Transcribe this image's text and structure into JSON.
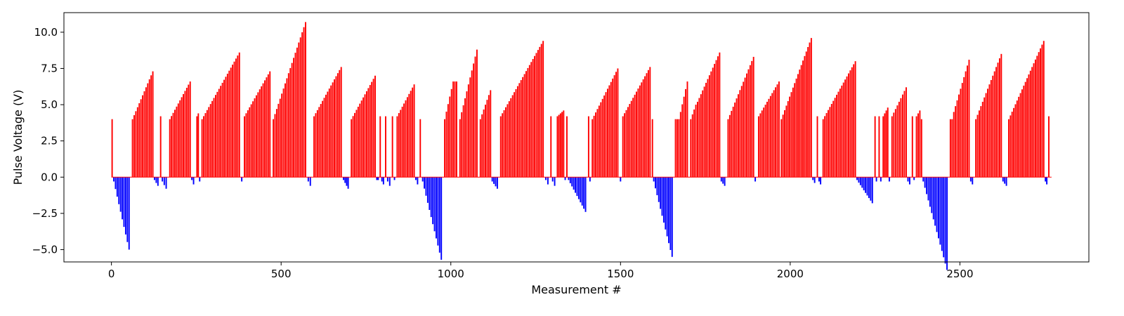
{
  "chart_data": {
    "type": "bar",
    "title": "",
    "xlabel": "Measurement #",
    "ylabel": "Pulse Voltage (V)",
    "xlim": [
      -140,
      2880
    ],
    "ylim": [
      -5.85,
      11.35
    ],
    "xticks": [
      0,
      500,
      1000,
      1500,
      2000,
      2500
    ],
    "xtick_labels": [
      "0",
      "500",
      "1000",
      "1500",
      "2000",
      "2500"
    ],
    "yticks": [
      -5.0,
      -2.5,
      0.0,
      2.5,
      5.0,
      7.5,
      10.0
    ],
    "ytick_labels": [
      "−5.0",
      "−2.5",
      "0.0",
      "2.5",
      "5.0",
      "7.5",
      "10.0"
    ],
    "grid": false,
    "legend": "none",
    "colors": {
      "positive": "#ff0000",
      "negative": "#0000ff"
    },
    "segments": [
      {
        "x0": 0,
        "x1": 5,
        "y0": 4.0,
        "y1": 4.0
      },
      {
        "x0": 5,
        "x1": 55,
        "y0": -0.3,
        "y1": -5.0
      },
      {
        "x0": 60,
        "x1": 125,
        "y0": 4.0,
        "y1": 7.3
      },
      {
        "x0": 125,
        "x1": 140,
        "y0": -0.2,
        "y1": -0.6
      },
      {
        "x0": 143,
        "x1": 148,
        "y0": 4.2,
        "y1": 4.2
      },
      {
        "x0": 148,
        "x1": 165,
        "y0": -0.3,
        "y1": -0.8
      },
      {
        "x0": 170,
        "x1": 235,
        "y0": 4.0,
        "y1": 6.6
      },
      {
        "x0": 235,
        "x1": 245,
        "y0": -0.2,
        "y1": -0.5
      },
      {
        "x0": 250,
        "x1": 258,
        "y0": 4.2,
        "y1": 4.4
      },
      {
        "x0": 258,
        "x1": 262,
        "y0": -0.3,
        "y1": -0.3
      },
      {
        "x0": 265,
        "x1": 380,
        "y0": 4.0,
        "y1": 8.6
      },
      {
        "x0": 382,
        "x1": 388,
        "y0": -0.3,
        "y1": -0.3
      },
      {
        "x0": 390,
        "x1": 470,
        "y0": 4.2,
        "y1": 7.3
      },
      {
        "x0": 475,
        "x1": 575,
        "y0": 4.0,
        "y1": 10.7
      },
      {
        "x0": 578,
        "x1": 590,
        "y0": -0.3,
        "y1": -0.6
      },
      {
        "x0": 595,
        "x1": 680,
        "y0": 4.2,
        "y1": 7.6
      },
      {
        "x0": 682,
        "x1": 700,
        "y0": -0.2,
        "y1": -0.8
      },
      {
        "x0": 705,
        "x1": 780,
        "y0": 4.0,
        "y1": 7.0
      },
      {
        "x0": 780,
        "x1": 788,
        "y0": -0.2,
        "y1": -0.2
      },
      {
        "x0": 790,
        "x1": 795,
        "y0": 4.2,
        "y1": 4.2
      },
      {
        "x0": 795,
        "x1": 804,
        "y0": -0.3,
        "y1": -0.5
      },
      {
        "x0": 806,
        "x1": 812,
        "y0": 4.2,
        "y1": 4.2
      },
      {
        "x0": 812,
        "x1": 824,
        "y0": -0.3,
        "y1": -0.6
      },
      {
        "x0": 826,
        "x1": 832,
        "y0": 4.2,
        "y1": 4.2
      },
      {
        "x0": 832,
        "x1": 838,
        "y0": -0.2,
        "y1": -0.2
      },
      {
        "x0": 840,
        "x1": 895,
        "y0": 4.2,
        "y1": 6.4
      },
      {
        "x0": 895,
        "x1": 905,
        "y0": -0.2,
        "y1": -0.5
      },
      {
        "x0": 908,
        "x1": 915,
        "y0": 4.0,
        "y1": 4.0
      },
      {
        "x0": 915,
        "x1": 975,
        "y0": -0.3,
        "y1": -5.7
      },
      {
        "x0": 980,
        "x1": 1010,
        "y0": 4.0,
        "y1": 6.6
      },
      {
        "x0": 1010,
        "x1": 1020,
        "y0": 6.6,
        "y1": 6.6
      },
      {
        "x0": 1025,
        "x1": 1080,
        "y0": 4.0,
        "y1": 8.8
      },
      {
        "x0": 1085,
        "x1": 1120,
        "y0": 4.0,
        "y1": 6.0
      },
      {
        "x0": 1120,
        "x1": 1140,
        "y0": -0.3,
        "y1": -0.8
      },
      {
        "x0": 1145,
        "x1": 1275,
        "y0": 4.2,
        "y1": 9.4
      },
      {
        "x0": 1278,
        "x1": 1290,
        "y0": -0.2,
        "y1": -0.5
      },
      {
        "x0": 1293,
        "x1": 1298,
        "y0": 4.2,
        "y1": 4.2
      },
      {
        "x0": 1298,
        "x1": 1310,
        "y0": -0.3,
        "y1": -0.6
      },
      {
        "x0": 1312,
        "x1": 1335,
        "y0": 4.2,
        "y1": 4.6
      },
      {
        "x0": 1335,
        "x1": 1340,
        "y0": -0.2,
        "y1": -0.2
      },
      {
        "x0": 1340,
        "x1": 1345,
        "y0": 4.2,
        "y1": 4.2
      },
      {
        "x0": 1345,
        "x1": 1400,
        "y0": -0.2,
        "y1": -2.4
      },
      {
        "x0": 1404,
        "x1": 1408,
        "y0": 4.2,
        "y1": 4.2
      },
      {
        "x0": 1408,
        "x1": 1412,
        "y0": -0.3,
        "y1": -0.3
      },
      {
        "x0": 1415,
        "x1": 1495,
        "y0": 4.0,
        "y1": 7.5
      },
      {
        "x0": 1498,
        "x1": 1503,
        "y0": -0.3,
        "y1": -0.3
      },
      {
        "x0": 1505,
        "x1": 1590,
        "y0": 4.2,
        "y1": 7.6
      },
      {
        "x0": 1592,
        "x1": 1596,
        "y0": 4.0,
        "y1": 4.0
      },
      {
        "x0": 1596,
        "x1": 1655,
        "y0": -0.3,
        "y1": -5.5
      },
      {
        "x0": 1660,
        "x1": 1675,
        "y0": 4.0,
        "y1": 4.0
      },
      {
        "x0": 1675,
        "x1": 1700,
        "y0": 4.5,
        "y1": 6.6
      },
      {
        "x0": 1705,
        "x1": 1725,
        "y0": 4.0,
        "y1": 5.0
      },
      {
        "x0": 1725,
        "x1": 1795,
        "y0": 5.2,
        "y1": 8.6
      },
      {
        "x0": 1795,
        "x1": 1810,
        "y0": -0.3,
        "y1": -0.6
      },
      {
        "x0": 1815,
        "x1": 1895,
        "y0": 4.0,
        "y1": 8.3
      },
      {
        "x0": 1895,
        "x1": 1902,
        "y0": -0.3,
        "y1": -0.3
      },
      {
        "x0": 1905,
        "x1": 1970,
        "y0": 4.2,
        "y1": 6.6
      },
      {
        "x0": 1972,
        "x1": 2065,
        "y0": 4.0,
        "y1": 9.6
      },
      {
        "x0": 2065,
        "x1": 2075,
        "y0": -0.2,
        "y1": -0.4
      },
      {
        "x0": 2078,
        "x1": 2083,
        "y0": 4.2,
        "y1": 4.2
      },
      {
        "x0": 2083,
        "x1": 2092,
        "y0": -0.3,
        "y1": -0.5
      },
      {
        "x0": 2095,
        "x1": 2195,
        "y0": 4.0,
        "y1": 8.0
      },
      {
        "x0": 2195,
        "x1": 2245,
        "y0": -0.2,
        "y1": -1.8
      },
      {
        "x0": 2248,
        "x1": 2252,
        "y0": 4.2,
        "y1": 4.2
      },
      {
        "x0": 2252,
        "x1": 2257,
        "y0": -0.3,
        "y1": -0.3
      },
      {
        "x0": 2260,
        "x1": 2265,
        "y0": 4.2,
        "y1": 4.2
      },
      {
        "x0": 2265,
        "x1": 2270,
        "y0": -0.3,
        "y1": -0.3
      },
      {
        "x0": 2272,
        "x1": 2290,
        "y0": 4.2,
        "y1": 4.8
      },
      {
        "x0": 2290,
        "x1": 2296,
        "y0": -0.3,
        "y1": -0.3
      },
      {
        "x0": 2298,
        "x1": 2345,
        "y0": 4.2,
        "y1": 6.2
      },
      {
        "x0": 2345,
        "x1": 2355,
        "y0": -0.3,
        "y1": -0.5
      },
      {
        "x0": 2358,
        "x1": 2363,
        "y0": 4.2,
        "y1": 4.2
      },
      {
        "x0": 2363,
        "x1": 2368,
        "y0": -0.2,
        "y1": -0.2
      },
      {
        "x0": 2370,
        "x1": 2385,
        "y0": 4.2,
        "y1": 4.6
      },
      {
        "x0": 2385,
        "x1": 2390,
        "y0": 4.0,
        "y1": 4.0
      },
      {
        "x0": 2390,
        "x1": 2465,
        "y0": -0.3,
        "y1": -6.4
      },
      {
        "x0": 2470,
        "x1": 2480,
        "y0": 4.0,
        "y1": 4.0
      },
      {
        "x0": 2480,
        "x1": 2530,
        "y0": 4.5,
        "y1": 8.1
      },
      {
        "x0": 2530,
        "x1": 2540,
        "y0": -0.3,
        "y1": -0.5
      },
      {
        "x0": 2545,
        "x1": 2625,
        "y0": 4.0,
        "y1": 8.5
      },
      {
        "x0": 2625,
        "x1": 2640,
        "y0": -0.3,
        "y1": -0.6
      },
      {
        "x0": 2642,
        "x1": 2750,
        "y0": 4.0,
        "y1": 9.4
      },
      {
        "x0": 2750,
        "x1": 2758,
        "y0": -0.3,
        "y1": -0.5
      },
      {
        "x0": 2760,
        "x1": 2765,
        "y0": 4.2,
        "y1": 4.2
      }
    ]
  }
}
